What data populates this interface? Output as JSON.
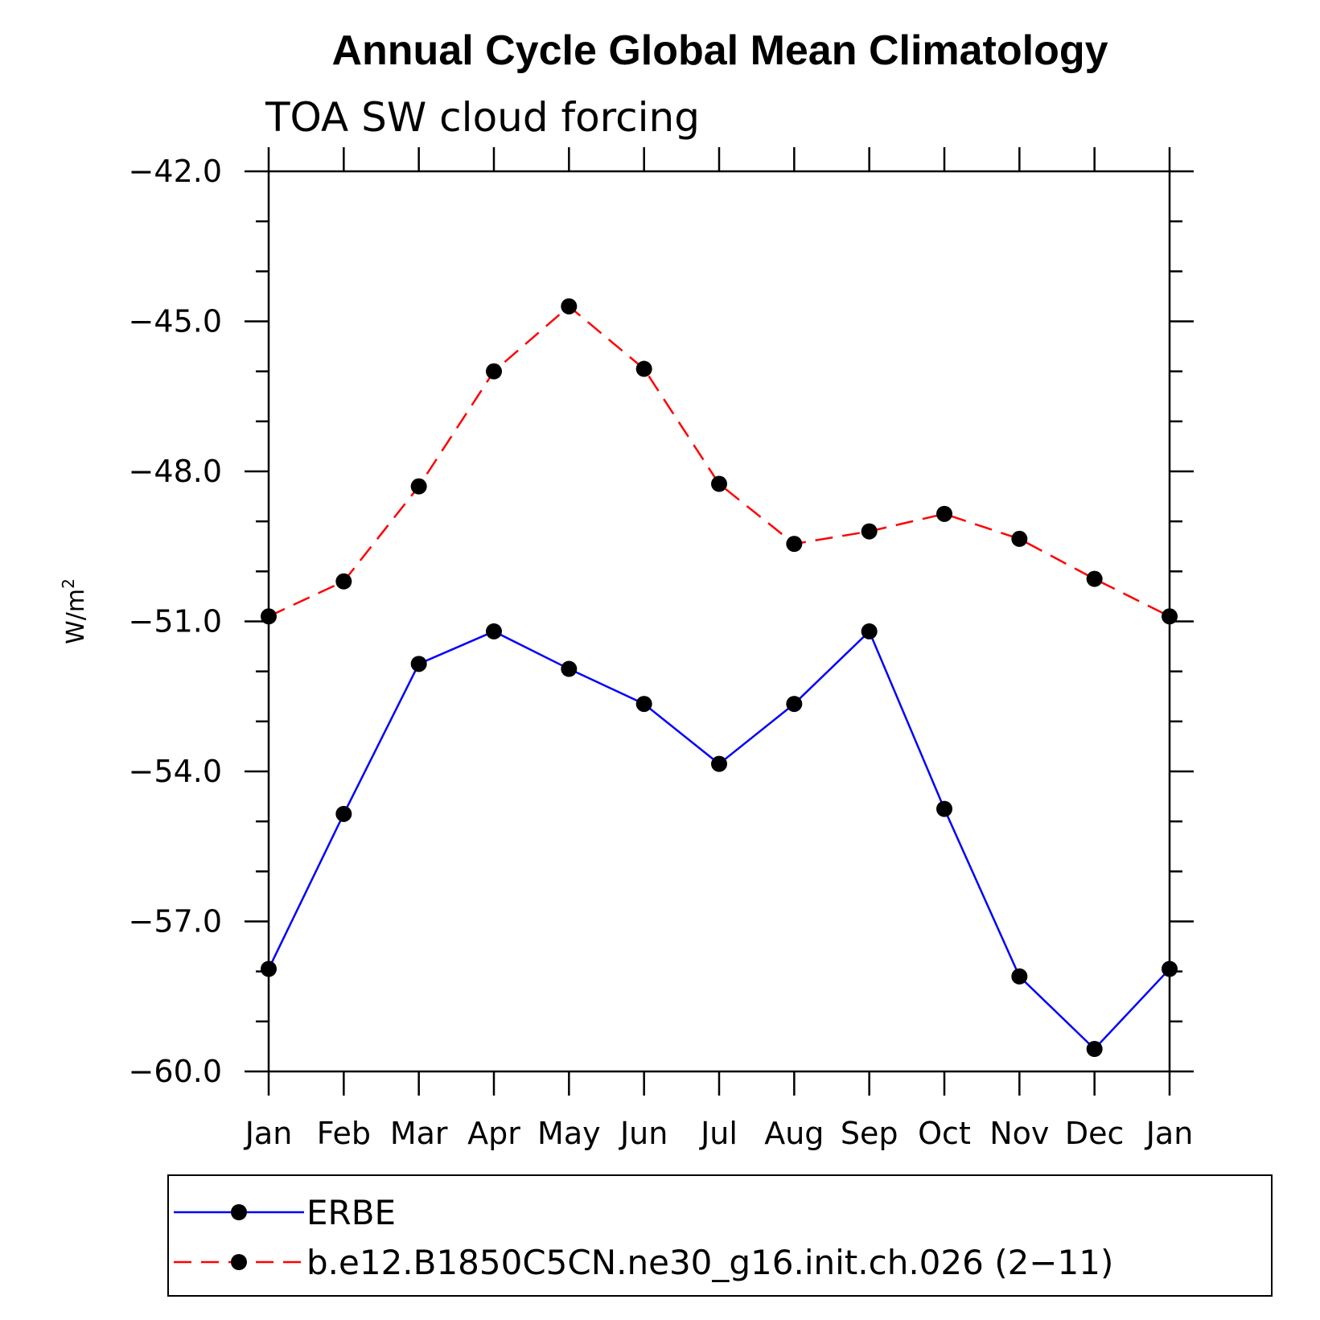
{
  "chart_data": {
    "type": "line",
    "title": "Annual Cycle Global Mean Climatology",
    "subtitle": "TOA SW cloud forcing",
    "ylabel": "W/m",
    "ylabel_sup": "2",
    "categories": [
      "Jan",
      "Feb",
      "Mar",
      "Apr",
      "May",
      "Jun",
      "Jul",
      "Aug",
      "Sep",
      "Oct",
      "Nov",
      "Dec",
      "Jan"
    ],
    "ylim": [
      -60.0,
      -42.0
    ],
    "yticks": [
      "-42.0",
      "-45.0",
      "-48.0",
      "-51.0",
      "-54.0",
      "-57.0",
      "-60.0"
    ],
    "series": [
      {
        "name": "ERBE",
        "color": "#0000ff",
        "dash": "solid",
        "values": [
          -57.95,
          -54.85,
          -51.85,
          -51.2,
          -51.95,
          -52.65,
          -53.85,
          -52.65,
          -51.2,
          -54.75,
          -58.1,
          -59.55,
          -57.95
        ]
      },
      {
        "name": "b.e12.B1850C5CN.ne30_g16.init.ch.026 (2-11)",
        "color": "#ff0000",
        "dash": "dashed",
        "values": [
          -50.9,
          -50.2,
          -48.3,
          -46.0,
          -44.7,
          -45.95,
          -48.25,
          -49.45,
          -49.2,
          -48.85,
          -49.35,
          -50.15,
          -50.9
        ]
      }
    ],
    "legend_position": "bottom"
  }
}
